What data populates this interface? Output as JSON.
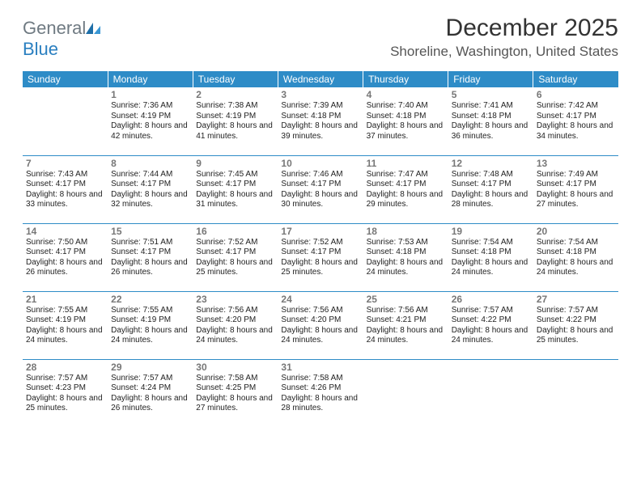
{
  "brand": {
    "part1": "General",
    "part2": "Blue"
  },
  "title": "December 2025",
  "location": "Shoreline, Washington, United States",
  "colors": {
    "header_bg": "#2e8cc7",
    "header_text": "#ffffff",
    "rule": "#2e8cc7",
    "daynum": "#777777",
    "body_text": "#222222",
    "brand_gray": "#6f7a82",
    "brand_blue": "#2a7fc0"
  },
  "weekdays": [
    "Sunday",
    "Monday",
    "Tuesday",
    "Wednesday",
    "Thursday",
    "Friday",
    "Saturday"
  ],
  "weeks": [
    [
      null,
      {
        "n": "1",
        "sr": "Sunrise: 7:36 AM",
        "ss": "Sunset: 4:19 PM",
        "dl": "Daylight: 8 hours and 42 minutes."
      },
      {
        "n": "2",
        "sr": "Sunrise: 7:38 AM",
        "ss": "Sunset: 4:19 PM",
        "dl": "Daylight: 8 hours and 41 minutes."
      },
      {
        "n": "3",
        "sr": "Sunrise: 7:39 AM",
        "ss": "Sunset: 4:18 PM",
        "dl": "Daylight: 8 hours and 39 minutes."
      },
      {
        "n": "4",
        "sr": "Sunrise: 7:40 AM",
        "ss": "Sunset: 4:18 PM",
        "dl": "Daylight: 8 hours and 37 minutes."
      },
      {
        "n": "5",
        "sr": "Sunrise: 7:41 AM",
        "ss": "Sunset: 4:18 PM",
        "dl": "Daylight: 8 hours and 36 minutes."
      },
      {
        "n": "6",
        "sr": "Sunrise: 7:42 AM",
        "ss": "Sunset: 4:17 PM",
        "dl": "Daylight: 8 hours and 34 minutes."
      }
    ],
    [
      {
        "n": "7",
        "sr": "Sunrise: 7:43 AM",
        "ss": "Sunset: 4:17 PM",
        "dl": "Daylight: 8 hours and 33 minutes."
      },
      {
        "n": "8",
        "sr": "Sunrise: 7:44 AM",
        "ss": "Sunset: 4:17 PM",
        "dl": "Daylight: 8 hours and 32 minutes."
      },
      {
        "n": "9",
        "sr": "Sunrise: 7:45 AM",
        "ss": "Sunset: 4:17 PM",
        "dl": "Daylight: 8 hours and 31 minutes."
      },
      {
        "n": "10",
        "sr": "Sunrise: 7:46 AM",
        "ss": "Sunset: 4:17 PM",
        "dl": "Daylight: 8 hours and 30 minutes."
      },
      {
        "n": "11",
        "sr": "Sunrise: 7:47 AM",
        "ss": "Sunset: 4:17 PM",
        "dl": "Daylight: 8 hours and 29 minutes."
      },
      {
        "n": "12",
        "sr": "Sunrise: 7:48 AM",
        "ss": "Sunset: 4:17 PM",
        "dl": "Daylight: 8 hours and 28 minutes."
      },
      {
        "n": "13",
        "sr": "Sunrise: 7:49 AM",
        "ss": "Sunset: 4:17 PM",
        "dl": "Daylight: 8 hours and 27 minutes."
      }
    ],
    [
      {
        "n": "14",
        "sr": "Sunrise: 7:50 AM",
        "ss": "Sunset: 4:17 PM",
        "dl": "Daylight: 8 hours and 26 minutes."
      },
      {
        "n": "15",
        "sr": "Sunrise: 7:51 AM",
        "ss": "Sunset: 4:17 PM",
        "dl": "Daylight: 8 hours and 26 minutes."
      },
      {
        "n": "16",
        "sr": "Sunrise: 7:52 AM",
        "ss": "Sunset: 4:17 PM",
        "dl": "Daylight: 8 hours and 25 minutes."
      },
      {
        "n": "17",
        "sr": "Sunrise: 7:52 AM",
        "ss": "Sunset: 4:17 PM",
        "dl": "Daylight: 8 hours and 25 minutes."
      },
      {
        "n": "18",
        "sr": "Sunrise: 7:53 AM",
        "ss": "Sunset: 4:18 PM",
        "dl": "Daylight: 8 hours and 24 minutes."
      },
      {
        "n": "19",
        "sr": "Sunrise: 7:54 AM",
        "ss": "Sunset: 4:18 PM",
        "dl": "Daylight: 8 hours and 24 minutes."
      },
      {
        "n": "20",
        "sr": "Sunrise: 7:54 AM",
        "ss": "Sunset: 4:18 PM",
        "dl": "Daylight: 8 hours and 24 minutes."
      }
    ],
    [
      {
        "n": "21",
        "sr": "Sunrise: 7:55 AM",
        "ss": "Sunset: 4:19 PM",
        "dl": "Daylight: 8 hours and 24 minutes."
      },
      {
        "n": "22",
        "sr": "Sunrise: 7:55 AM",
        "ss": "Sunset: 4:19 PM",
        "dl": "Daylight: 8 hours and 24 minutes."
      },
      {
        "n": "23",
        "sr": "Sunrise: 7:56 AM",
        "ss": "Sunset: 4:20 PM",
        "dl": "Daylight: 8 hours and 24 minutes."
      },
      {
        "n": "24",
        "sr": "Sunrise: 7:56 AM",
        "ss": "Sunset: 4:20 PM",
        "dl": "Daylight: 8 hours and 24 minutes."
      },
      {
        "n": "25",
        "sr": "Sunrise: 7:56 AM",
        "ss": "Sunset: 4:21 PM",
        "dl": "Daylight: 8 hours and 24 minutes."
      },
      {
        "n": "26",
        "sr": "Sunrise: 7:57 AM",
        "ss": "Sunset: 4:22 PM",
        "dl": "Daylight: 8 hours and 24 minutes."
      },
      {
        "n": "27",
        "sr": "Sunrise: 7:57 AM",
        "ss": "Sunset: 4:22 PM",
        "dl": "Daylight: 8 hours and 25 minutes."
      }
    ],
    [
      {
        "n": "28",
        "sr": "Sunrise: 7:57 AM",
        "ss": "Sunset: 4:23 PM",
        "dl": "Daylight: 8 hours and 25 minutes."
      },
      {
        "n": "29",
        "sr": "Sunrise: 7:57 AM",
        "ss": "Sunset: 4:24 PM",
        "dl": "Daylight: 8 hours and 26 minutes."
      },
      {
        "n": "30",
        "sr": "Sunrise: 7:58 AM",
        "ss": "Sunset: 4:25 PM",
        "dl": "Daylight: 8 hours and 27 minutes."
      },
      {
        "n": "31",
        "sr": "Sunrise: 7:58 AM",
        "ss": "Sunset: 4:26 PM",
        "dl": "Daylight: 8 hours and 28 minutes."
      },
      null,
      null,
      null
    ]
  ]
}
